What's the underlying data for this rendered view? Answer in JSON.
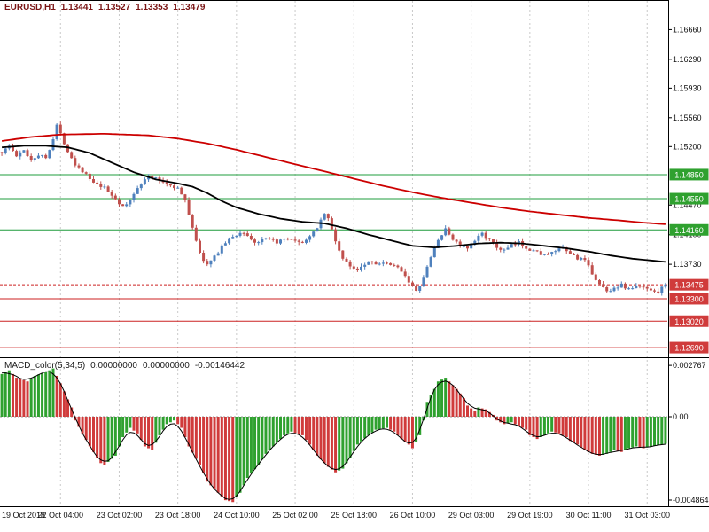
{
  "header": {
    "symbol": "EURUSD,H1",
    "open": "1.13441",
    "high": "1.13527",
    "low": "1.13353",
    "close": "1.13479"
  },
  "macd_header": {
    "label": "MACD_color(5,34,5)",
    "value1": "0.00000000",
    "value2": "0.00000000",
    "value3": "-0.00146442"
  },
  "colors": {
    "up_candle": "#4f81bd",
    "down_candle": "#c0504d",
    "macd_up": "#2fa12f",
    "macd_down": "#d03b3b",
    "ma_fast_black": "#000000",
    "ma_slow_red": "#cc0000",
    "resistance_line": "#1f9c3c",
    "support_line": "#cc2222",
    "current_line": "#cc2222",
    "grid": "#c9c9c9",
    "tag_green": "#2fa12f",
    "tag_red": "#d03b3b",
    "axis_text": "#111111",
    "border": "#000000",
    "signal_line": "#000000"
  },
  "chart_data": {
    "type": "candlestick",
    "symbol": "EURUSD",
    "timeframe": "H1",
    "bar_count": 182,
    "current_ohlc": {
      "open": 1.13441,
      "high": 1.13527,
      "low": 1.13353,
      "close": 1.13479
    },
    "price_axis": {
      "top": 1.1703,
      "bottom": 1.12569,
      "plain_labels": [
        [
          "1.16660",
          1.1666
        ],
        [
          "1.16290",
          1.1629
        ],
        [
          "1.15930",
          1.1593
        ],
        [
          "1.15560",
          1.1556
        ],
        [
          "1.15200",
          1.152
        ],
        [
          "1.14470",
          1.1447
        ],
        [
          "1.14100",
          1.141
        ],
        [
          "1.13730",
          1.1373
        ]
      ],
      "level_tags": [
        [
          "1.14850",
          1.1485,
          "green"
        ],
        [
          "1.14550",
          1.1455,
          "green"
        ],
        [
          "1.14160",
          1.1416,
          "green"
        ],
        [
          "1.13475",
          1.13475,
          "red"
        ],
        [
          "1.13300",
          1.133,
          "red"
        ],
        [
          "1.13020",
          1.1302,
          "red"
        ],
        [
          "1.12690",
          1.1269,
          "red"
        ]
      ]
    },
    "levels": {
      "resistance": [
        1.1485,
        1.1455,
        1.1416
      ],
      "support": [
        1.133,
        1.1302,
        1.1269
      ],
      "current_price": 1.13475
    },
    "grid_bars": [
      16,
      32,
      48,
      64,
      80,
      96,
      112,
      128,
      144,
      160,
      176
    ],
    "time_labels": [
      {
        "text": "19 Oct 2018",
        "bar": 0,
        "align": "left"
      },
      {
        "text": "22 Oct 04:00",
        "bar": 16
      },
      {
        "text": "23 Oct 02:00",
        "bar": 32
      },
      {
        "text": "23 Oct 18:00",
        "bar": 48
      },
      {
        "text": "24 Oct 10:00",
        "bar": 64
      },
      {
        "text": "25 Oct 02:00",
        "bar": 80
      },
      {
        "text": "25 Oct 18:00",
        "bar": 96
      },
      {
        "text": "26 Oct 10:00",
        "bar": 112
      },
      {
        "text": "29 Oct 03:00",
        "bar": 128
      },
      {
        "text": "29 Oct 19:00",
        "bar": 144
      },
      {
        "text": "30 Oct 11:00",
        "bar": 160
      },
      {
        "text": "31 Oct 03:00",
        "bar": 176
      }
    ],
    "price_path": [
      [
        0,
        1.1513
      ],
      [
        2,
        1.1521
      ],
      [
        4,
        1.1508
      ],
      [
        6,
        1.1515
      ],
      [
        8,
        1.1504
      ],
      [
        10,
        1.151
      ],
      [
        12,
        1.1506
      ],
      [
        14,
        1.153
      ],
      [
        15,
        1.1547
      ],
      [
        16,
        1.1535
      ],
      [
        18,
        1.1515
      ],
      [
        20,
        1.1498
      ],
      [
        22,
        1.149
      ],
      [
        25,
        1.1474
      ],
      [
        28,
        1.1468
      ],
      [
        31,
        1.1455
      ],
      [
        33,
        1.1444
      ],
      [
        35,
        1.1452
      ],
      [
        37,
        1.147
      ],
      [
        40,
        1.1483
      ],
      [
        43,
        1.1478
      ],
      [
        46,
        1.1472
      ],
      [
        48,
        1.1468
      ],
      [
        50,
        1.1452
      ],
      [
        52,
        1.142
      ],
      [
        54,
        1.1386
      ],
      [
        56,
        1.1372
      ],
      [
        58,
        1.1382
      ],
      [
        60,
        1.1396
      ],
      [
        63,
        1.1408
      ],
      [
        66,
        1.1413
      ],
      [
        69,
        1.14
      ],
      [
        72,
        1.1404
      ],
      [
        75,
        1.1401
      ],
      [
        78,
        1.1404
      ],
      [
        81,
        1.1399
      ],
      [
        84,
        1.1406
      ],
      [
        86,
        1.142
      ],
      [
        88,
        1.1437
      ],
      [
        89,
        1.143
      ],
      [
        91,
        1.1402
      ],
      [
        93,
        1.138
      ],
      [
        95,
        1.137
      ],
      [
        97,
        1.1368
      ],
      [
        100,
        1.1377
      ],
      [
        103,
        1.1374
      ],
      [
        106,
        1.1372
      ],
      [
        109,
        1.1366
      ],
      [
        111,
        1.1352
      ],
      [
        113,
        1.1338
      ],
      [
        115,
        1.1356
      ],
      [
        117,
        1.1382
      ],
      [
        119,
        1.1404
      ],
      [
        121,
        1.1416
      ],
      [
        123,
        1.1405
      ],
      [
        125,
        1.1396
      ],
      [
        127,
        1.1392
      ],
      [
        129,
        1.1402
      ],
      [
        131,
        1.1413
      ],
      [
        133,
        1.1403
      ],
      [
        135,
        1.1394
      ],
      [
        137,
        1.139
      ],
      [
        139,
        1.1396
      ],
      [
        141,
        1.14
      ],
      [
        143,
        1.1394
      ],
      [
        146,
        1.1388
      ],
      [
        149,
        1.1384
      ],
      [
        151,
        1.139
      ],
      [
        153,
        1.1392
      ],
      [
        155,
        1.1386
      ],
      [
        157,
        1.1381
      ],
      [
        159,
        1.1377
      ],
      [
        161,
        1.1362
      ],
      [
        163,
        1.1348
      ],
      [
        165,
        1.1339
      ],
      [
        167,
        1.1344
      ],
      [
        169,
        1.1347
      ],
      [
        171,
        1.1342
      ],
      [
        173,
        1.1345
      ],
      [
        175,
        1.1344
      ],
      [
        177,
        1.1342
      ],
      [
        179,
        1.1339
      ],
      [
        181,
        1.1348
      ]
    ],
    "ma_slow_red": [
      [
        0,
        1.1527
      ],
      [
        8,
        1.1532
      ],
      [
        16,
        1.1535
      ],
      [
        28,
        1.1536
      ],
      [
        40,
        1.1534
      ],
      [
        48,
        1.153
      ],
      [
        56,
        1.1524
      ],
      [
        64,
        1.1516
      ],
      [
        72,
        1.1507
      ],
      [
        80,
        1.1498
      ],
      [
        88,
        1.1489
      ],
      [
        96,
        1.148
      ],
      [
        104,
        1.1471
      ],
      [
        112,
        1.1463
      ],
      [
        120,
        1.1456
      ],
      [
        128,
        1.145
      ],
      [
        136,
        1.1444
      ],
      [
        144,
        1.1439
      ],
      [
        152,
        1.1435
      ],
      [
        160,
        1.1431
      ],
      [
        168,
        1.1428
      ],
      [
        175,
        1.1425
      ],
      [
        181,
        1.1423
      ]
    ],
    "ma_fast_black": [
      [
        0,
        1.1519
      ],
      [
        6,
        1.1521
      ],
      [
        12,
        1.1521
      ],
      [
        18,
        1.1519
      ],
      [
        24,
        1.1512
      ],
      [
        30,
        1.15
      ],
      [
        36,
        1.1488
      ],
      [
        42,
        1.1479
      ],
      [
        48,
        1.1474
      ],
      [
        52,
        1.147
      ],
      [
        56,
        1.1462
      ],
      [
        60,
        1.1452
      ],
      [
        64,
        1.1444
      ],
      [
        70,
        1.1436
      ],
      [
        76,
        1.143
      ],
      [
        82,
        1.1426
      ],
      [
        88,
        1.1424
      ],
      [
        94,
        1.1418
      ],
      [
        100,
        1.141
      ],
      [
        106,
        1.1403
      ],
      [
        112,
        1.1396
      ],
      [
        118,
        1.1394
      ],
      [
        124,
        1.1396
      ],
      [
        130,
        1.1399
      ],
      [
        136,
        1.14
      ],
      [
        142,
        1.1399
      ],
      [
        148,
        1.1396
      ],
      [
        154,
        1.1393
      ],
      [
        160,
        1.1389
      ],
      [
        166,
        1.1384
      ],
      [
        172,
        1.138
      ],
      [
        181,
        1.1376
      ]
    ],
    "macd": {
      "name": "MACD_color(5,34,5)",
      "axis_top": 0.002767,
      "axis_zero": 0.0,
      "axis_bottom": -0.004864,
      "axis_top_label": "0.002767",
      "axis_zero_label": "0.00",
      "axis_bottom_label": "-0.004864",
      "last_value": -0.00146442,
      "path": [
        [
          0,
          0.0023
        ],
        [
          2,
          0.0025
        ],
        [
          4,
          0.0021
        ],
        [
          7,
          0.0019
        ],
        [
          9,
          0.0022
        ],
        [
          13,
          0.0025
        ],
        [
          14,
          0.0026
        ],
        [
          16,
          0.0018
        ],
        [
          19,
          0.0005
        ],
        [
          20,
          -0.0002
        ],
        [
          24,
          -0.0016
        ],
        [
          27,
          -0.0025
        ],
        [
          28,
          -0.0026
        ],
        [
          31,
          -0.0021
        ],
        [
          33,
          -0.0011
        ],
        [
          35,
          -0.0006
        ],
        [
          37,
          -0.0009
        ],
        [
          39,
          -0.0016
        ],
        [
          41,
          -0.0018
        ],
        [
          43,
          -0.001
        ],
        [
          45,
          -0.0004
        ],
        [
          47,
          -0.0002
        ],
        [
          49,
          -0.0006
        ],
        [
          51,
          -0.0016
        ],
        [
          54,
          -0.0026
        ],
        [
          56,
          -0.0035
        ],
        [
          59,
          -0.0041
        ],
        [
          61,
          -0.0045
        ],
        [
          63,
          -0.0046
        ],
        [
          65,
          -0.0041
        ],
        [
          67,
          -0.0033
        ],
        [
          70,
          -0.0026
        ],
        [
          72,
          -0.002
        ],
        [
          75,
          -0.0014
        ],
        [
          77,
          -0.001
        ],
        [
          79,
          -0.0008
        ],
        [
          82,
          -0.001
        ],
        [
          84,
          -0.0015
        ],
        [
          86,
          -0.0021
        ],
        [
          89,
          -0.0027
        ],
        [
          91,
          -0.003
        ],
        [
          93,
          -0.0028
        ],
        [
          95,
          -0.0022
        ],
        [
          97,
          -0.0015
        ],
        [
          100,
          -0.001
        ],
        [
          102,
          -0.0007
        ],
        [
          105,
          -0.0006
        ],
        [
          107,
          -0.0008
        ],
        [
          109,
          -0.0012
        ],
        [
          111,
          -0.0015
        ],
        [
          112,
          -0.0017
        ],
        [
          114,
          -0.001
        ],
        [
          115,
          -0.0002
        ],
        [
          116,
          0.0008
        ],
        [
          118,
          0.0015
        ],
        [
          119,
          0.0019
        ],
        [
          121,
          0.0021
        ],
        [
          122,
          0.0019
        ],
        [
          124,
          0.0015
        ],
        [
          126,
          0.001
        ],
        [
          127,
          0.0006
        ],
        [
          129,
          0.0003
        ],
        [
          130,
          0.0005
        ],
        [
          132,
          0.0004
        ],
        [
          134,
          0.0001
        ],
        [
          135,
          -0.0002
        ],
        [
          137,
          -0.0004
        ],
        [
          139,
          -0.0003
        ],
        [
          141,
          -0.0005
        ],
        [
          143,
          -0.0007
        ],
        [
          144,
          -0.001
        ],
        [
          146,
          -0.0012
        ],
        [
          148,
          -0.001
        ],
        [
          150,
          -0.0008
        ],
        [
          152,
          -0.0009
        ],
        [
          154,
          -0.0011
        ],
        [
          155,
          -0.0013
        ],
        [
          157,
          -0.0015
        ],
        [
          159,
          -0.0018
        ],
        [
          161,
          -0.002
        ],
        [
          163,
          -0.0021
        ],
        [
          165,
          -0.002
        ],
        [
          167,
          -0.0018
        ],
        [
          169,
          -0.0019
        ],
        [
          171,
          -0.0017
        ],
        [
          173,
          -0.0016
        ],
        [
          175,
          -0.0017
        ],
        [
          177,
          -0.0016
        ],
        [
          180,
          -0.0015
        ],
        [
          181,
          -0.00146
        ]
      ]
    }
  }
}
